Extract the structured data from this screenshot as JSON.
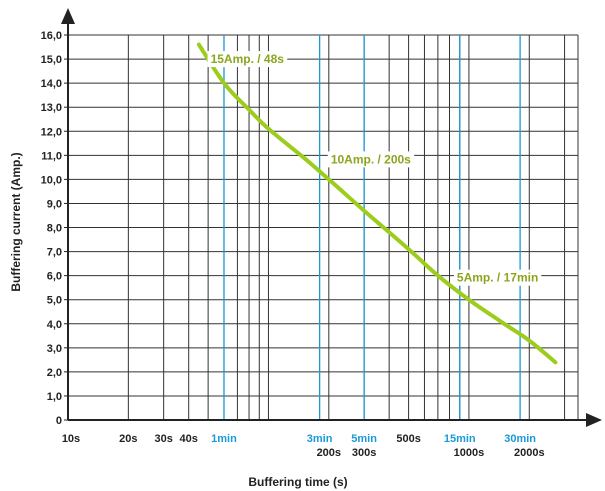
{
  "chart_data": {
    "type": "line",
    "xscale": "log",
    "ylabel": "Buffering current (Amp.)",
    "xlabel": "Buffering time (s)",
    "ylim": [
      0,
      16
    ],
    "xlim": [
      10,
      3500
    ],
    "y_ticks": [
      "0",
      "1,0",
      "2,0",
      "3,0",
      "4,0",
      "5,0",
      "6,0",
      "7,0",
      "8,0",
      "9,0",
      "10,0",
      "11,0",
      "12,0",
      "13,0",
      "14,0",
      "15,0",
      "16,0"
    ],
    "x_ticks_black": [
      {
        "value": 10,
        "label": "10s"
      },
      {
        "value": 20,
        "label": "20s"
      },
      {
        "value": 30,
        "label": "30s"
      },
      {
        "value": 40,
        "label": "40s"
      },
      {
        "value": 200,
        "label": "200s"
      },
      {
        "value": 300,
        "label": "300s"
      },
      {
        "value": 500,
        "label": "500s"
      },
      {
        "value": 1000,
        "label": "1000s"
      },
      {
        "value": 2000,
        "label": "2000s"
      }
    ],
    "x_ticks_blue": [
      {
        "value": 60,
        "label": "1min"
      },
      {
        "value": 180,
        "label": "3min"
      },
      {
        "value": 300,
        "label": "5min"
      },
      {
        "value": 900,
        "label": "15min"
      },
      {
        "value": 1800,
        "label": "30min"
      }
    ],
    "grid_black": [
      10,
      20,
      30,
      40,
      50,
      60,
      70,
      80,
      90,
      100,
      200,
      300,
      400,
      500,
      600,
      700,
      800,
      900,
      1000,
      2000,
      3000
    ],
    "grid_blue": [
      60,
      180,
      300,
      900,
      1800
    ],
    "series": [
      {
        "color": "#9ccc1c",
        "x": [
          45,
          60,
          80,
          100,
          150,
          200,
          300,
          500,
          700,
          1000,
          1500,
          2000,
          2700
        ],
        "y": [
          15.6,
          14.0,
          12.9,
          12.1,
          10.9,
          10.0,
          8.7,
          7.1,
          6.0,
          5.0,
          4.0,
          3.3,
          2.4
        ]
      }
    ],
    "annotations": [
      {
        "text": "15Amp. / 48s",
        "x": 48,
        "y": 15
      },
      {
        "text": "10Amp. / 200s",
        "x": 200,
        "y": 10
      },
      {
        "text": "5Amp. / 17min",
        "x": 1000,
        "y": 5
      }
    ],
    "colors": {
      "blue_grid": "#1a9ad6",
      "curve": "#9ccc1c",
      "label_green": "#8aa61e"
    }
  }
}
